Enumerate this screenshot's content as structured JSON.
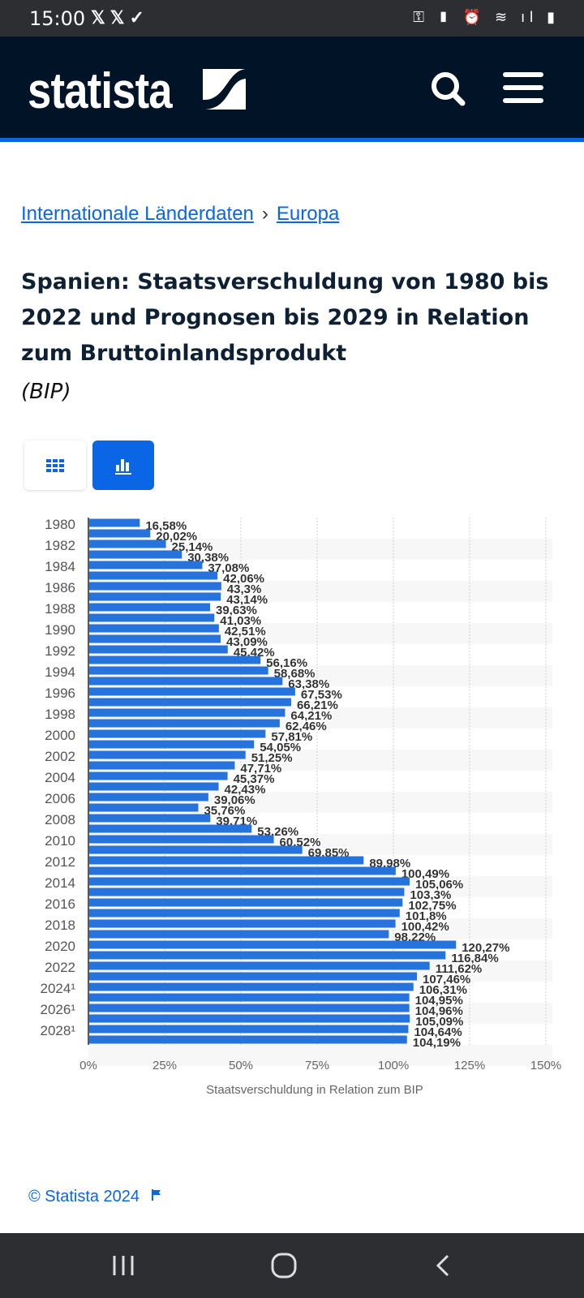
{
  "status_bar": {
    "time": "15:00",
    "left_icons": [
      "x-icon",
      "x-icon",
      "location-check-icon"
    ],
    "right_icons": [
      "key-icon",
      "battery-saver-icon",
      "alarm-icon",
      "wifi-icon",
      "signal-icon",
      "battery-icon"
    ]
  },
  "header": {
    "logo": "statista",
    "search_icon": "search-icon",
    "menu_icon": "hamburger-icon"
  },
  "breadcrumb": {
    "items": [
      "Internationale Länderdaten",
      "Europa"
    ],
    "separator": "›"
  },
  "title": "Spanien: Staatsverschuldung von 1980 bis 2022 und Prognosen bis 2029 in Relation zum Bruttoinlandsprodukt",
  "subtitle": "(BIP)",
  "view_toggle": {
    "table_icon": "table-grid-icon",
    "chart_icon": "bar-chart-icon",
    "active": "chart"
  },
  "colors": {
    "accent": "#0a66e4",
    "bar": "#2673dd",
    "header_bg": "#001327"
  },
  "chart_data": {
    "type": "bar",
    "orientation": "horizontal",
    "categories": [
      "1980",
      "1981",
      "1982",
      "1983",
      "1984",
      "1985",
      "1986",
      "1987",
      "1988",
      "1989",
      "1990",
      "1991",
      "1992",
      "1993",
      "1994",
      "1995",
      "1996",
      "1997",
      "1998",
      "1999",
      "2000",
      "2001",
      "2002",
      "2003",
      "2004",
      "2005",
      "2006",
      "2007",
      "2008",
      "2009",
      "2010",
      "2011",
      "2012",
      "2013",
      "2014",
      "2015",
      "2016",
      "2017",
      "2018",
      "2019",
      "2020",
      "2021",
      "2022",
      "2023",
      "2024¹",
      "2025¹",
      "2026¹",
      "2027¹",
      "2028¹",
      "2029¹"
    ],
    "shown_category_labels": [
      "1980",
      "1982",
      "1984",
      "1986",
      "1988",
      "1990",
      "1992",
      "1994",
      "1996",
      "1998",
      "2000",
      "2002",
      "2004",
      "2006",
      "2008",
      "2010",
      "2012",
      "2014",
      "2016",
      "2018",
      "2020",
      "2022",
      "2024¹",
      "2026¹",
      "2028¹"
    ],
    "values": [
      16.58,
      20.02,
      25.14,
      30.38,
      37.08,
      42.06,
      43.3,
      43.14,
      39.63,
      41.03,
      42.51,
      43.09,
      45.42,
      56.16,
      58.68,
      63.38,
      67.53,
      66.21,
      64.21,
      62.46,
      57.81,
      54.05,
      51.25,
      47.71,
      45.37,
      42.43,
      39.06,
      35.76,
      39.71,
      53.26,
      60.52,
      69.85,
      89.98,
      100.49,
      105.06,
      103.3,
      102.75,
      101.8,
      100.42,
      98.22,
      120.27,
      116.84,
      111.62,
      107.46,
      106.31,
      104.95,
      104.96,
      105.09,
      104.64,
      104.19
    ],
    "data_labels": [
      "16,58%",
      "20,02%",
      "25,14%",
      "30,38%",
      "37,08%",
      "42,06%",
      "43,3%",
      "43,14%",
      "39,63%",
      "41,03%",
      "42,51%",
      "43,09%",
      "45,42%",
      "56,16%",
      "58,68%",
      "63,38%",
      "67,53%",
      "66,21%",
      "64,21%",
      "62,46%",
      "57,81%",
      "54,05%",
      "51,25%",
      "47,71%",
      "45,37%",
      "42,43%",
      "39,06%",
      "35,76%",
      "39,71%",
      "53,26%",
      "60,52%",
      "69,85%",
      "89,98%",
      "100,49%",
      "105,06%",
      "103,3%",
      "102,75%",
      "101,8%",
      "100,42%",
      "98,22%",
      "120,27%",
      "116,84%",
      "111,62%",
      "107,46%",
      "106,31%",
      "104,95%",
      "104,96%",
      "105,09%",
      "104,64%",
      "104,19%"
    ],
    "xlabel": "Staatsverschuldung in Relation zum BIP",
    "ylabel": "",
    "xlim": [
      0,
      150
    ],
    "x_ticks": [
      "0%",
      "25%",
      "50%",
      "75%",
      "100%",
      "125%",
      "150%"
    ],
    "grid": true
  },
  "footer": {
    "copyright": "© Statista 2024",
    "flag_icon": "flag-icon"
  },
  "nav_bar": {
    "recents": "recents-icon",
    "home": "home-icon",
    "back": "back-icon"
  }
}
